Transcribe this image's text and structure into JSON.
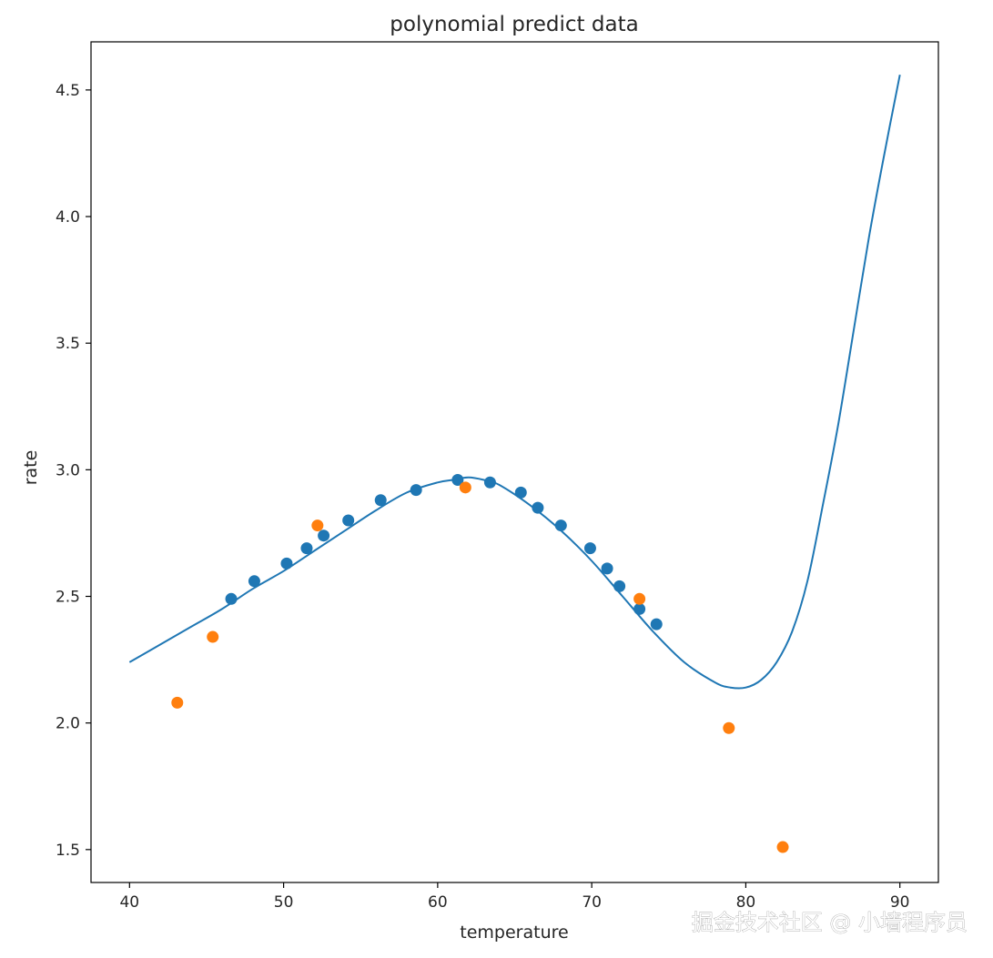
{
  "chart_data": {
    "type": "scatter",
    "title": "polynomial predict data",
    "xlabel": "temperature",
    "ylabel": "rate",
    "xlim": [
      37.5,
      92.5
    ],
    "ylim": [
      1.37,
      4.69
    ],
    "xticks": [
      40,
      50,
      60,
      70,
      80,
      90
    ],
    "yticks": [
      1.5,
      2.0,
      2.5,
      3.0,
      3.5,
      4.0,
      4.5
    ],
    "ytick_labels": [
      "1.5",
      "2.0",
      "2.5",
      "3.0",
      "3.5",
      "4.0",
      "4.5"
    ],
    "grid": false,
    "colors": {
      "fit_line": "#1f77b4",
      "train_points": "#1f77b4",
      "test_points": "#ff7f0e"
    },
    "series": [
      {
        "kind": "line",
        "x": [
          40,
          42,
          44,
          46,
          48,
          50,
          52,
          54,
          56,
          58,
          60,
          61,
          62,
          63,
          64,
          66,
          68,
          70,
          72,
          74,
          76,
          78,
          79,
          80,
          81,
          82,
          83,
          84,
          85,
          86,
          87,
          88,
          89,
          90
        ],
        "y": [
          2.24,
          2.31,
          2.38,
          2.45,
          2.53,
          2.6,
          2.68,
          2.76,
          2.84,
          2.91,
          2.95,
          2.96,
          2.97,
          2.96,
          2.94,
          2.86,
          2.76,
          2.64,
          2.5,
          2.36,
          2.24,
          2.16,
          2.14,
          2.14,
          2.17,
          2.24,
          2.36,
          2.56,
          2.86,
          3.18,
          3.55,
          3.92,
          4.25,
          4.56
        ]
      },
      {
        "kind": "scatter",
        "x": [
          46.6,
          48.1,
          50.2,
          51.5,
          52.6,
          54.2,
          56.3,
          58.6,
          61.3,
          63.4,
          65.4,
          66.5,
          68.0,
          69.9,
          71.0,
          71.8,
          73.1,
          74.2
        ],
        "y": [
          2.49,
          2.56,
          2.63,
          2.69,
          2.74,
          2.8,
          2.88,
          2.92,
          2.96,
          2.95,
          2.91,
          2.85,
          2.78,
          2.69,
          2.61,
          2.54,
          2.45,
          2.39
        ]
      },
      {
        "kind": "scatter",
        "x": [
          43.1,
          45.4,
          52.2,
          61.8,
          73.1,
          78.9,
          82.4
        ],
        "y": [
          2.08,
          2.34,
          2.78,
          2.93,
          2.49,
          1.98,
          1.51
        ]
      }
    ]
  },
  "watermark": "掘金技术社区 @ 小墙程序员"
}
